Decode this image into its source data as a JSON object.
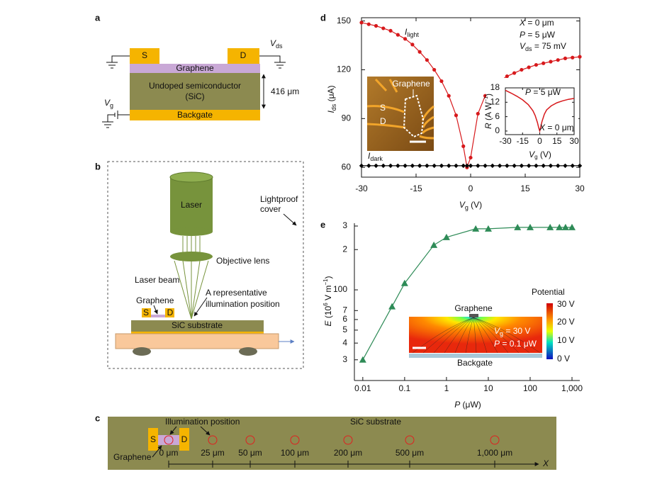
{
  "panels": [
    "a",
    "b",
    "c",
    "d",
    "e"
  ],
  "diagram_a": {
    "source": "S",
    "drain": "D",
    "vds": [
      "V",
      "ds"
    ],
    "graphene": "Graphene",
    "semiconductor": [
      "Undoped semiconductor",
      "(SiC)"
    ],
    "thickness": "416 μm",
    "vg": [
      "V",
      "g"
    ],
    "backgate": "Backgate"
  },
  "diagram_b": {
    "laser": "Laser",
    "lightproof": [
      "Lightproof",
      "cover"
    ],
    "lens": "Objective lens",
    "beam": "Laser beam",
    "graphene": "Graphene",
    "source": "S",
    "drain": "D",
    "position": [
      "A representative",
      "illumination position"
    ],
    "substrate": "SiC substrate"
  },
  "diagram_c": {
    "source": "S",
    "drain": "D",
    "illumination": "Illumination position",
    "substrate": "SiC substrate",
    "graphene": "Graphene",
    "positions": [
      "0 μm",
      "25 μm",
      "50 μm",
      "100 μm",
      "200 μm",
      "500 μm",
      "1,000 μm"
    ],
    "axis": "X"
  },
  "inset_d_photo": {
    "graphene": "Graphene",
    "source": "S",
    "drain": "D"
  },
  "inset_e_map": {
    "title": "Potential",
    "colorbar": [
      "30 V",
      "20 V",
      "10 V",
      "0 V"
    ],
    "graphene": "Graphene",
    "vg": [
      "V",
      "g",
      " = 30  V"
    ],
    "power": [
      "P",
      " = 0.1 μW"
    ],
    "backgate": "Backgate"
  },
  "chart_data": [
    {
      "type": "line",
      "x": [
        -30,
        -28,
        -26,
        -24,
        -22,
        -20,
        -18,
        -16,
        -14,
        -12,
        -10,
        -8,
        -6,
        -4,
        -2,
        -1,
        0,
        2,
        4,
        6,
        8,
        10,
        12,
        14,
        16,
        18,
        20,
        22,
        24,
        26,
        28,
        30
      ],
      "series": [
        {
          "name": [
            "I",
            "light"
          ],
          "color": "#d7191c",
          "marker": "circle",
          "values": [
            149,
            148,
            147,
            145.5,
            144,
            141.5,
            139,
            135.5,
            131,
            126,
            120,
            113,
            104,
            92,
            73,
            60,
            66,
            93,
            104,
            109,
            113,
            116,
            118,
            120,
            121.5,
            123,
            124,
            125,
            126,
            127,
            127.5,
            128
          ]
        },
        {
          "name": [
            "I",
            "dark"
          ],
          "color": "#000000",
          "marker": "diamond",
          "values": [
            61,
            61,
            61,
            61,
            61,
            61,
            61,
            61,
            61,
            61,
            61,
            61,
            61,
            61,
            61,
            61,
            61,
            61,
            61,
            61,
            61,
            61,
            61,
            61,
            61,
            61,
            61,
            61,
            61,
            61,
            61,
            61
          ]
        }
      ],
      "xlim": [
        -30,
        30
      ],
      "xticks": [
        -30,
        -15,
        0,
        15,
        30
      ],
      "ylim": [
        54,
        152
      ],
      "yticks": [
        60,
        90,
        120,
        150
      ],
      "xlabel": [
        "V",
        "g",
        " (V)"
      ],
      "ylabel": [
        "I",
        "ds",
        " (μA)"
      ],
      "annotations": [
        [
          "X",
          " = 0 μm"
        ],
        [
          "P",
          " = 5 μW"
        ],
        [
          "V",
          "ds",
          " = 75 mV"
        ]
      ]
    },
    {
      "type": "line",
      "x": [
        -30,
        -25,
        -20,
        -15,
        -10,
        -6,
        -4,
        -2,
        -1,
        0,
        1,
        2,
        4,
        6,
        10,
        15,
        20,
        25,
        30
      ],
      "values": [
        17,
        15.8,
        14.5,
        13,
        11,
        8.5,
        6.5,
        3.5,
        1.5,
        0,
        2,
        4,
        7,
        8.8,
        10.5,
        11.8,
        12.6,
        13.2,
        13.6
      ],
      "color": "#d7191c",
      "xlim": [
        -30,
        30
      ],
      "xticks": [
        -30,
        -15,
        0,
        15,
        30
      ],
      "ylim": [
        -1.5,
        18
      ],
      "yticks": [
        0,
        6,
        12,
        18
      ],
      "xlabel": [
        "V",
        "g",
        " (V)"
      ],
      "ylabel": [
        "R",
        " (A W",
        "−1",
        ")"
      ],
      "annotations": [
        [
          "P",
          " = 5 μW"
        ],
        [
          "X",
          " = 0 μm"
        ]
      ]
    },
    {
      "type": "line",
      "xscale": "log",
      "yscale": "log",
      "x": [
        0.01,
        0.05,
        0.1,
        0.5,
        1,
        5,
        10,
        50,
        100,
        300,
        500,
        700,
        1000
      ],
      "values": [
        30,
        75,
        112,
        216,
        247,
        286,
        286,
        293,
        293,
        293,
        293,
        293,
        293
      ],
      "color": "#2e8b57",
      "marker": "triangle",
      "xlim": [
        0.0063,
        1535
      ],
      "xticks": [
        0.01,
        0.1,
        1,
        10,
        100,
        {
          "value": 1000,
          "label": "1,000"
        }
      ],
      "ylim": [
        21,
        315
      ],
      "yticks": [
        {
          "value": 300,
          "label": "3"
        },
        {
          "value": 200,
          "label": "2"
        },
        100,
        {
          "value": 70,
          "label": "7"
        },
        {
          "value": 60,
          "label": "6"
        },
        {
          "value": 50,
          "label": "5"
        },
        {
          "value": 40,
          "label": "4"
        },
        {
          "value": 30,
          "label": "3"
        }
      ],
      "xlabel": [
        "P",
        " (μW)"
      ],
      "ylabel": [
        "E",
        " (10",
        "6",
        " V m",
        "−1",
        ")"
      ]
    }
  ]
}
